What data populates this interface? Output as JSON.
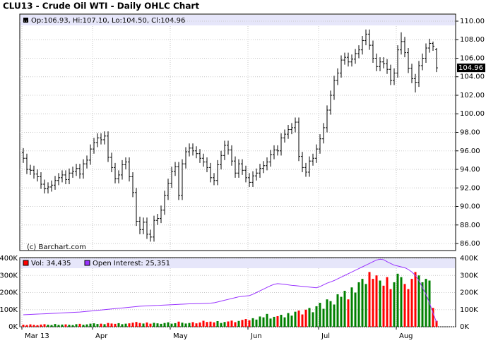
{
  "chart_data": [
    {
      "type": "ohlc",
      "title": "CLU13 - Crude Oil WTI - Daily OHLC Chart",
      "legend": "Op:106.93, Hi:107.10, Lo:104.50, Cl:104.96",
      "credit": "(c) Barchart.com",
      "color": "#000000",
      "last_color": "#000000",
      "categories": [
        "Mar 13",
        null,
        null,
        null,
        null,
        null,
        null,
        null,
        null,
        null,
        null,
        null,
        null,
        null,
        null,
        null,
        null,
        null,
        null,
        null,
        "Apr",
        null,
        null,
        null,
        null,
        null,
        null,
        null,
        null,
        null,
        null,
        null,
        null,
        null,
        null,
        null,
        null,
        null,
        null,
        null,
        null,
        null,
        "May",
        null,
        null,
        null,
        null,
        null,
        null,
        null,
        null,
        null,
        null,
        null,
        null,
        null,
        null,
        null,
        null,
        null,
        null,
        null,
        null,
        null,
        "Jun",
        null,
        null,
        null,
        null,
        null,
        null,
        null,
        null,
        null,
        null,
        null,
        null,
        null,
        null,
        null,
        null,
        null,
        null,
        null,
        "Jul",
        null,
        null,
        null,
        null,
        null,
        null,
        null,
        null,
        null,
        null,
        null,
        null,
        null,
        null,
        null,
        null,
        null,
        null,
        null,
        null,
        null,
        "Aug",
        null,
        null,
        null,
        null,
        null,
        null,
        null,
        null,
        null,
        null,
        null
      ],
      "open": [
        95.8,
        95.2,
        94.0,
        93.9,
        93.5,
        93.2,
        92.4,
        91.9,
        92.1,
        92.3,
        92.8,
        93.1,
        93.4,
        92.9,
        93.6,
        93.8,
        94.1,
        93.5,
        94.6,
        95.0,
        96.2,
        96.9,
        97.4,
        97.2,
        97.6,
        95.3,
        94.2,
        93.0,
        93.4,
        94.5,
        94.8,
        93.2,
        91.5,
        88.4,
        87.5,
        88.3,
        87.0,
        86.7,
        88.5,
        88.7,
        89.6,
        91.2,
        92.5,
        93.8,
        94.3,
        91.2,
        94.6,
        95.9,
        96.3,
        96.0,
        95.7,
        95.2,
        94.8,
        94.2,
        93.1,
        92.8,
        94.5,
        95.5,
        96.6,
        96.1,
        94.9,
        93.6,
        94.6,
        93.9,
        93.1,
        92.6,
        93.3,
        93.6,
        94.1,
        94.4,
        94.8,
        95.6,
        96.1,
        96.0,
        97.4,
        97.8,
        98.3,
        98.5,
        99.1,
        95.4,
        94.2,
        93.7,
        94.9,
        95.2,
        96.2,
        97.3,
        98.5,
        100.4,
        102.0,
        103.6,
        104.4,
        105.8,
        106.1,
        105.6,
        105.9,
        106.5,
        106.9,
        107.9,
        108.6,
        107.4,
        106.0,
        105.1,
        105.6,
        105.4,
        104.8,
        103.6,
        104.4,
        106.9,
        107.8,
        106.6,
        104.9,
        103.8,
        103.4,
        105.2,
        106.0,
        107.1,
        107.6,
        106.93
      ],
      "high": [
        96.3,
        95.7,
        94.5,
        94.4,
        94.0,
        93.7,
        92.9,
        92.6,
        92.8,
        93.3,
        93.6,
        93.9,
        93.9,
        94.1,
        94.3,
        94.6,
        94.6,
        95.1,
        95.5,
        96.7,
        97.4,
        97.9,
        97.9,
        98.1,
        98.1,
        95.8,
        94.7,
        93.9,
        95.0,
        95.3,
        95.3,
        93.7,
        92.0,
        88.9,
        88.8,
        88.8,
        87.5,
        89.0,
        89.2,
        90.1,
        91.7,
        93.0,
        94.3,
        94.8,
        94.8,
        95.1,
        96.4,
        96.8,
        96.8,
        96.5,
        96.2,
        95.7,
        95.3,
        94.7,
        93.6,
        95.0,
        96.0,
        97.1,
        97.1,
        96.6,
        95.4,
        95.1,
        95.1,
        94.4,
        93.6,
        93.8,
        94.1,
        94.6,
        94.9,
        95.3,
        96.1,
        96.6,
        96.6,
        97.9,
        98.3,
        98.8,
        99.0,
        99.6,
        99.6,
        95.9,
        94.7,
        95.4,
        95.7,
        96.7,
        97.8,
        99.0,
        100.9,
        102.5,
        104.1,
        104.9,
        106.3,
        106.6,
        106.6,
        106.4,
        107.0,
        107.4,
        108.4,
        109.1,
        109.1,
        107.9,
        106.5,
        106.1,
        106.1,
        105.9,
        105.3,
        104.9,
        107.4,
        108.8,
        108.3,
        107.1,
        105.4,
        104.3,
        105.7,
        106.5,
        107.6,
        108.1,
        107.8,
        107.1
      ],
      "low": [
        94.7,
        93.5,
        93.4,
        93.0,
        92.7,
        91.9,
        91.4,
        91.4,
        91.6,
        91.8,
        92.3,
        92.6,
        92.4,
        92.4,
        93.1,
        93.3,
        93.0,
        93.0,
        94.1,
        94.5,
        95.7,
        96.4,
        96.7,
        96.7,
        94.8,
        93.7,
        92.5,
        92.5,
        92.9,
        94.0,
        92.7,
        91.0,
        87.9,
        87.0,
        87.0,
        86.5,
        86.2,
        86.2,
        88.0,
        88.2,
        89.1,
        90.7,
        92.0,
        93.3,
        90.7,
        90.7,
        94.1,
        95.4,
        95.5,
        95.2,
        94.7,
        94.3,
        93.7,
        92.6,
        92.3,
        92.3,
        94.0,
        95.0,
        95.6,
        94.4,
        93.1,
        93.1,
        93.4,
        92.6,
        92.1,
        92.1,
        92.8,
        93.1,
        93.6,
        93.9,
        94.3,
        95.1,
        95.5,
        95.5,
        96.9,
        97.3,
        97.8,
        98.0,
        94.9,
        93.7,
        93.2,
        93.2,
        94.4,
        94.7,
        95.7,
        96.8,
        98.0,
        99.9,
        101.5,
        103.1,
        103.9,
        105.3,
        105.1,
        105.1,
        105.4,
        106.0,
        106.4,
        107.4,
        106.9,
        105.5,
        104.6,
        104.6,
        104.9,
        104.3,
        103.1,
        103.1,
        103.9,
        106.4,
        106.1,
        104.4,
        103.3,
        102.3,
        102.9,
        104.7,
        105.5,
        106.6,
        106.8,
        104.5
      ],
      "close": [
        95.2,
        94.0,
        93.9,
        93.5,
        93.2,
        92.4,
        91.9,
        92.1,
        92.3,
        92.8,
        93.1,
        93.4,
        92.9,
        93.6,
        93.8,
        94.1,
        93.5,
        94.6,
        95.0,
        96.2,
        96.9,
        97.4,
        97.2,
        97.6,
        95.3,
        94.2,
        93.0,
        93.4,
        94.5,
        94.8,
        93.2,
        91.5,
        88.4,
        87.5,
        88.3,
        87.0,
        86.7,
        88.5,
        88.7,
        89.6,
        91.2,
        92.5,
        93.8,
        94.3,
        91.2,
        94.6,
        95.9,
        96.3,
        96.0,
        95.7,
        95.2,
        94.8,
        94.2,
        93.1,
        92.8,
        94.5,
        95.5,
        96.6,
        96.1,
        94.9,
        93.6,
        94.6,
        93.9,
        93.1,
        92.6,
        93.3,
        93.6,
        94.1,
        94.4,
        94.8,
        95.6,
        96.1,
        96.0,
        97.4,
        97.8,
        98.3,
        98.5,
        99.1,
        95.4,
        94.2,
        93.7,
        94.9,
        95.2,
        96.2,
        97.3,
        98.5,
        100.4,
        102.0,
        103.6,
        104.4,
        105.8,
        106.1,
        105.6,
        105.9,
        106.5,
        106.9,
        107.9,
        108.6,
        107.4,
        106.0,
        105.1,
        105.6,
        105.4,
        104.8,
        103.6,
        104.4,
        106.9,
        107.8,
        106.6,
        104.9,
        103.8,
        103.4,
        105.2,
        106.0,
        107.1,
        107.6,
        107.3,
        104.96
      ],
      "ylim": [
        85.24,
        110.76
      ],
      "yticks": [
        {
          "value": 86,
          "label": "86.00"
        },
        {
          "value": 88,
          "label": "88.00"
        },
        {
          "value": 90,
          "label": "90.00"
        },
        {
          "value": 92,
          "label": "92.00"
        },
        {
          "value": 94,
          "label": "94.00"
        },
        {
          "value": 96,
          "label": "96.00"
        },
        {
          "value": 98,
          "label": "98.00"
        },
        {
          "value": 100,
          "label": "100.00"
        },
        {
          "value": 102,
          "label": "102.00"
        },
        {
          "value": 104,
          "label": "104.00"
        },
        {
          "value": 106,
          "label": "106.00"
        },
        {
          "value": 108,
          "label": "108.00"
        },
        {
          "value": 110,
          "label": "110.00"
        }
      ],
      "grid": true
    },
    {
      "type": "volume",
      "up_color": "#008000",
      "series": [
        {
          "name": "Vol: 34,435",
          "color": "#ff0000",
          "values": [
            12000,
            10000,
            14000,
            11000,
            9000,
            13000,
            15000,
            12000,
            10000,
            16000,
            11000,
            13000,
            14000,
            12000,
            10000,
            15000,
            17000,
            12000,
            14000,
            18000,
            20000,
            16000,
            18000,
            15000,
            22000,
            19000,
            17000,
            21000,
            15000,
            18000,
            20000,
            24000,
            28000,
            22000,
            19000,
            25000,
            18000,
            23000,
            20000,
            17000,
            22000,
            26000,
            18000,
            21000,
            30000,
            24000,
            19000,
            22000,
            27000,
            20000,
            25000,
            35000,
            28000,
            30000,
            26000,
            33000,
            22000,
            28000,
            31000,
            36000,
            27000,
            34000,
            40000,
            45000,
            38000,
            50000,
            42000,
            60000,
            55000,
            75000,
            48000,
            58000,
            62000,
            70000,
            55000,
            80000,
            65000,
            88000,
            95000,
            72000,
            100000,
            110000,
            85000,
            120000,
            140000,
            105000,
            160000,
            150000,
            130000,
            190000,
            175000,
            210000,
            160000,
            230000,
            200000,
            260000,
            280000,
            250000,
            320000,
            280000,
            300000,
            270000,
            240000,
            290000,
            220000,
            260000,
            310000,
            290000,
            250000,
            220000,
            280000,
            320000,
            300000,
            260000,
            280000,
            270000,
            110000,
            34435
          ]
        },
        {
          "name": "Open Interest: 25,351",
          "color": "#9933ff",
          "values": [
            70000,
            71000,
            72000,
            73000,
            74000,
            75000,
            76000,
            77000,
            78000,
            79000,
            80000,
            81000,
            82000,
            83000,
            84000,
            85000,
            86000,
            88000,
            90000,
            92000,
            94000,
            96000,
            98000,
            100000,
            102000,
            104000,
            106000,
            108000,
            110000,
            112000,
            114000,
            116000,
            118000,
            120000,
            121000,
            122000,
            123000,
            124000,
            125000,
            126000,
            127000,
            128000,
            129000,
            130000,
            131000,
            132000,
            133000,
            134000,
            134000,
            135000,
            135000,
            136000,
            137000,
            138000,
            140000,
            145000,
            150000,
            155000,
            160000,
            165000,
            170000,
            175000,
            178000,
            180000,
            182000,
            190000,
            200000,
            210000,
            220000,
            230000,
            240000,
            248000,
            252000,
            250000,
            248000,
            245000,
            242000,
            240000,
            238000,
            236000,
            234000,
            232000,
            230000,
            228000,
            235000,
            245000,
            255000,
            262000,
            270000,
            280000,
            290000,
            300000,
            310000,
            320000,
            330000,
            340000,
            350000,
            360000,
            370000,
            380000,
            390000,
            395000,
            392000,
            380000,
            370000,
            360000,
            355000,
            350000,
            345000,
            335000,
            320000,
            300000,
            270000,
            230000,
            190000,
            140000,
            80000,
            25351
          ]
        }
      ],
      "ylim": [
        0,
        400000
      ],
      "yticks": [
        {
          "value": 0,
          "label": "0K"
        },
        {
          "value": 100000,
          "label": "100K"
        },
        {
          "value": 200000,
          "label": "200K"
        },
        {
          "value": 300000,
          "label": "300K"
        },
        {
          "value": 400000,
          "label": "400K"
        }
      ],
      "grid": true
    }
  ]
}
